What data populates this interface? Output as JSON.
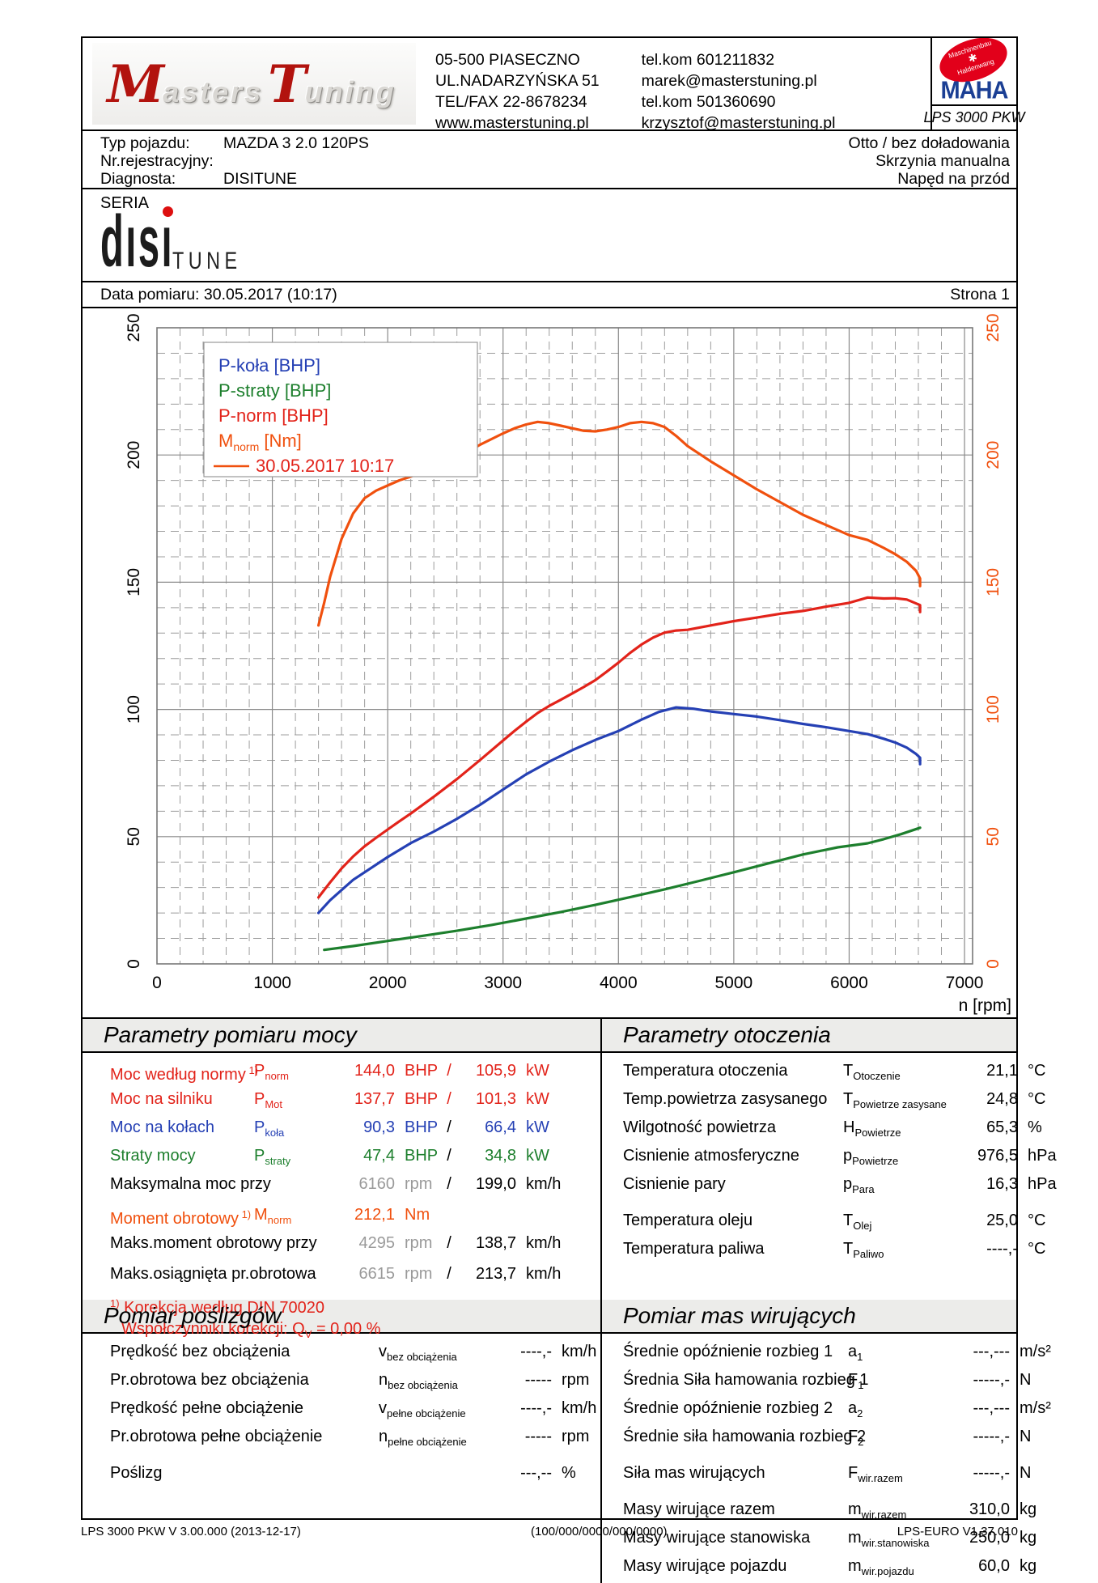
{
  "colors": {
    "accent_red": "#e2231a",
    "accent_orange": "#f0500e",
    "accent_blue": "#2540b4",
    "accent_green": "#1d7f2d",
    "gray_value": "#9a9a9a",
    "maha_red": "#e2001a",
    "maha_blue": "#1b3f94",
    "section_header_bg": "#ececea",
    "logo_red": "#b2130e"
  },
  "header": {
    "logo": {
      "m": "M",
      "asters": "asters",
      "t": "T",
      "uning": "uning"
    },
    "address_lines": [
      "05-500 PIASECZNO",
      "UL.NADARZYŃSKA 51",
      "TEL/FAX 22-8678234",
      "www.masterstuning.pl"
    ],
    "contact_lines": [
      "tel.kom 601211832",
      " marek@masterstuning.pl",
      "tel.kom 501360690",
      "krzysztof@masterstuning.pl"
    ],
    "maha": {
      "badge_top": "Maschinenbau",
      "badge_gear": "✱",
      "badge_bottom": "Haldenwang",
      "brand": "MAHA",
      "device": "LPS 3000 PKW"
    }
  },
  "vehicle": {
    "left": [
      {
        "label": "Typ pojazdu:",
        "value": "MAZDA 3 2.0 120PS"
      },
      {
        "label": "Nr.rejestracyjny:",
        "value": ""
      },
      {
        "label": "Diagnosta:",
        "value": "DISITUNE"
      }
    ],
    "right": [
      "Otto / bez doładowania",
      "Skrzynia manualna",
      "Napęd na przód"
    ]
  },
  "seria_label": "SERIA",
  "disi_logo": {
    "word": "dısı",
    "tune": "TUNE"
  },
  "dateline": {
    "date": "Data pomiaru: 30.05.2017 (10:17)",
    "page": "Strona 1"
  },
  "chart_data": {
    "type": "line",
    "title": "",
    "xlabel": "n [rpm]",
    "x_range": [
      0,
      7070
    ],
    "x_ticks": [
      0,
      1000,
      2000,
      3000,
      4000,
      5000,
      6000,
      7000
    ],
    "x_minor_step": 200,
    "y_left": {
      "label": "",
      "range": [
        0,
        250
      ],
      "ticks": [
        0,
        50,
        100,
        150,
        200,
        250
      ],
      "minor_step": 10,
      "color": "#000000"
    },
    "y_right": {
      "label": "",
      "range": [
        0,
        250
      ],
      "ticks": [
        0,
        50,
        100,
        150,
        200,
        250
      ],
      "minor_step": 10,
      "color": "#f0500e"
    },
    "grid": true,
    "legend": {
      "position": "top-left",
      "entries": [
        {
          "label": "P-koła [BHP]",
          "color": "#2540b4"
        },
        {
          "label": "P-straty [BHP]",
          "color": "#1d7f2d"
        },
        {
          "label": "P-norm [BHP]",
          "color": "#e2231a"
        },
        {
          "label_main": "M",
          "label_sub": "norm",
          "label_rest": " [Nm]",
          "color": "#f0500e"
        },
        {
          "swatch": "line",
          "label": "30.05.2017 10:17",
          "color": "#e2231a",
          "line_color": "#f0500e"
        }
      ]
    },
    "series": [
      {
        "name": "M_norm [Nm]",
        "color": "#f0500e",
        "axis": "right",
        "points": [
          [
            1400,
            133
          ],
          [
            1450,
            142
          ],
          [
            1500,
            152
          ],
          [
            1600,
            167
          ],
          [
            1700,
            177
          ],
          [
            1800,
            183
          ],
          [
            1900,
            186
          ],
          [
            2000,
            188
          ],
          [
            2100,
            190
          ],
          [
            2200,
            191.5
          ],
          [
            2400,
            195
          ],
          [
            2600,
            199
          ],
          [
            2800,
            204
          ],
          [
            3000,
            208.5
          ],
          [
            3100,
            210.5
          ],
          [
            3200,
            212
          ],
          [
            3300,
            213
          ],
          [
            3400,
            212.5
          ],
          [
            3500,
            211.5
          ],
          [
            3600,
            210.5
          ],
          [
            3700,
            209.5
          ],
          [
            3800,
            209.3
          ],
          [
            3900,
            210
          ],
          [
            4000,
            211
          ],
          [
            4100,
            212.5
          ],
          [
            4200,
            213
          ],
          [
            4300,
            212.5
          ],
          [
            4400,
            211
          ],
          [
            4500,
            207.5
          ],
          [
            4600,
            203.5
          ],
          [
            4800,
            197.5
          ],
          [
            5000,
            192
          ],
          [
            5200,
            186.5
          ],
          [
            5400,
            181.5
          ],
          [
            5600,
            176.5
          ],
          [
            5800,
            172.5
          ],
          [
            6000,
            168.5
          ],
          [
            6160,
            166.6
          ],
          [
            6300,
            163.5
          ],
          [
            6400,
            161
          ],
          [
            6500,
            158
          ],
          [
            6580,
            154.5
          ],
          [
            6615,
            151.5
          ],
          [
            6615,
            148.5
          ]
        ]
      },
      {
        "name": "P-norm [BHP]",
        "color": "#e2231a",
        "axis": "left",
        "points": [
          [
            1400,
            26.1
          ],
          [
            1500,
            32
          ],
          [
            1600,
            37.5
          ],
          [
            1700,
            42.2
          ],
          [
            1800,
            46.2
          ],
          [
            1900,
            49.6
          ],
          [
            2000,
            52.8
          ],
          [
            2100,
            56
          ],
          [
            2200,
            59.1
          ],
          [
            2400,
            65.7
          ],
          [
            2600,
            72.6
          ],
          [
            2800,
            80.1
          ],
          [
            3000,
            87.8
          ],
          [
            3100,
            91.6
          ],
          [
            3200,
            95.2
          ],
          [
            3300,
            98.6
          ],
          [
            3400,
            101.4
          ],
          [
            3500,
            103.8
          ],
          [
            3600,
            106.3
          ],
          [
            3700,
            108.8
          ],
          [
            3800,
            111.5
          ],
          [
            3900,
            114.9
          ],
          [
            4000,
            118.4
          ],
          [
            4100,
            122.2
          ],
          [
            4200,
            125.5
          ],
          [
            4300,
            128.2
          ],
          [
            4400,
            130.2
          ],
          [
            4500,
            131
          ],
          [
            4600,
            131.3
          ],
          [
            4800,
            133
          ],
          [
            5000,
            134.7
          ],
          [
            5200,
            136.1
          ],
          [
            5400,
            137.6
          ],
          [
            5600,
            138.7
          ],
          [
            5800,
            140.4
          ],
          [
            6000,
            141.9
          ],
          [
            6160,
            144
          ],
          [
            6300,
            143.6
          ],
          [
            6400,
            143.7
          ],
          [
            6500,
            143.2
          ],
          [
            6615,
            141
          ],
          [
            6615,
            138.3
          ]
        ]
      },
      {
        "name": "P-koła [BHP]",
        "color": "#2540b4",
        "axis": "left",
        "points": [
          [
            1400,
            20
          ],
          [
            1500,
            25
          ],
          [
            1600,
            29
          ],
          [
            1700,
            33
          ],
          [
            1800,
            36
          ],
          [
            2000,
            42
          ],
          [
            2200,
            47.5
          ],
          [
            2400,
            52
          ],
          [
            2600,
            57
          ],
          [
            2800,
            62.5
          ],
          [
            3000,
            68.5
          ],
          [
            3200,
            74.5
          ],
          [
            3400,
            79.5
          ],
          [
            3600,
            84
          ],
          [
            3800,
            88
          ],
          [
            4000,
            91.5
          ],
          [
            4200,
            96
          ],
          [
            4350,
            99
          ],
          [
            4500,
            100.8
          ],
          [
            4650,
            100.3
          ],
          [
            4800,
            99.2
          ],
          [
            5000,
            98.2
          ],
          [
            5200,
            97.2
          ],
          [
            5400,
            95.8
          ],
          [
            5600,
            94.3
          ],
          [
            5800,
            93
          ],
          [
            6000,
            91.5
          ],
          [
            6160,
            90.3
          ],
          [
            6300,
            88.5
          ],
          [
            6400,
            87
          ],
          [
            6500,
            85
          ],
          [
            6580,
            82.5
          ],
          [
            6615,
            81
          ],
          [
            6615,
            78.5
          ]
        ]
      },
      {
        "name": "P-straty [BHP]",
        "color": "#1d7f2d",
        "axis": "left",
        "points": [
          [
            1450,
            5.5
          ],
          [
            1700,
            7
          ],
          [
            2000,
            9
          ],
          [
            2300,
            11
          ],
          [
            2600,
            13
          ],
          [
            2900,
            15.3
          ],
          [
            3200,
            17.8
          ],
          [
            3500,
            20.4
          ],
          [
            3800,
            23.2
          ],
          [
            4100,
            26.2
          ],
          [
            4400,
            29.3
          ],
          [
            4700,
            32.6
          ],
          [
            5000,
            36
          ],
          [
            5300,
            39.5
          ],
          [
            5600,
            43
          ],
          [
            5900,
            45.8
          ],
          [
            6160,
            47.4
          ],
          [
            6300,
            49
          ],
          [
            6450,
            51
          ],
          [
            6615,
            53.5
          ]
        ]
      }
    ]
  },
  "sections": {
    "power": {
      "title": "Parametry pomiaru mocy",
      "rows": [
        {
          "label": "Moc według normy",
          "sup": "1)",
          "sym": "P",
          "sub": "norm",
          "v1": "144,0",
          "u1": "BHP",
          "slash": "/",
          "v2": "105,9",
          "u2": "kW",
          "color": "red"
        },
        {
          "label": "Moc na silniku",
          "sup": "",
          "sym": "P",
          "sub": "Mot",
          "v1": "137,7",
          "u1": "BHP",
          "slash": "/",
          "v2": "101,3",
          "u2": "kW",
          "color": "red"
        },
        {
          "label": "Moc na kołach",
          "sup": "",
          "sym": "P",
          "sub": "koła",
          "v1": "90,3",
          "u1": "BHP",
          "slash": "/",
          "v2": "66,4",
          "u2": "kW",
          "color": "blue"
        },
        {
          "label": "Straty mocy",
          "sup": "",
          "sym": "P",
          "sub": "straty",
          "v1": "47,4",
          "u1": "BHP",
          "slash": "/",
          "v2": "34,8",
          "u2": "kW",
          "color": "green"
        },
        {
          "label": "Maksymalna moc przy",
          "sup": "",
          "sym": "",
          "sub": "",
          "v1": "6160",
          "u1": "rpm",
          "gray1": true,
          "slash": "/",
          "v2": "199,0",
          "u2": "km/h",
          "color": "black"
        },
        {
          "label": "Moment obrotowy",
          "sup": "1)",
          "sym": "M",
          "sub": "norm",
          "v1": "212,1",
          "u1": "Nm",
          "slash": "",
          "v2": "",
          "u2": "",
          "color": "orange",
          "gap": true
        },
        {
          "label": "Maks.moment obrotowy przy",
          "sup": "",
          "sym": "",
          "sub": "",
          "v1": "4295",
          "u1": "rpm",
          "gray1": true,
          "slash": "/",
          "v2": "138,7",
          "u2": "km/h",
          "color": "black"
        },
        {
          "label": "Maks.osiągnięta pr.obrotowa",
          "sup": "",
          "sym": "",
          "sub": "",
          "v1": "6615",
          "u1": "rpm",
          "gray1": true,
          "slash": "/",
          "v2": "213,7",
          "u2": "km/h",
          "color": "black",
          "gap": true
        }
      ],
      "footnote1": {
        "sup": "1)",
        "text": " Korekcja według DIN 70020"
      },
      "footnote2": {
        "pre": "Współczynniki korekcji: Q",
        "sub": "V",
        "post": " =",
        "val": "  0,00 %"
      }
    },
    "ambient": {
      "title": "Parametry otoczenia",
      "rows": [
        {
          "label": "Temperatura otoczenia",
          "sym": "T",
          "sub": "Otoczenie",
          "v1": "21,1",
          "u1": "°C",
          "color": "black"
        },
        {
          "label": "Temp.powietrza zasysanego",
          "sym": "T",
          "sub": "Powietrze zasysane",
          "v1": "24,8",
          "u1": "°C",
          "color": "black"
        },
        {
          "label": "Wilgotność powietrza",
          "sym": "H",
          "sub": "Powietrze",
          "v1": "65,3",
          "u1": "%",
          "color": "black"
        },
        {
          "label": "Cisnienie atmosferyczne",
          "sym": "p",
          "sub": "Powietrze",
          "v1": "976,5",
          "u1": "hPa",
          "color": "black"
        },
        {
          "label": "Cisnienie pary",
          "sym": "p",
          "sub": "Para",
          "v1": "16,3",
          "u1": "hPa",
          "color": "black"
        },
        {
          "label": "Temperatura oleju",
          "sym": "T",
          "sub": "Olej",
          "v1": "25,0",
          "u1": "°C",
          "color": "black",
          "gap": true
        },
        {
          "label": "Temperatura paliwa",
          "sym": "T",
          "sub": "Paliwo",
          "v1": "----,-",
          "u1": "°C",
          "color": "black"
        }
      ]
    },
    "slip": {
      "title": "Pomiar poślizgów",
      "rows": [
        {
          "label": "Prędkość bez obciążenia",
          "sym": "v",
          "sub": "bez obciążenia",
          "v1": "----,-",
          "u1": "km/h",
          "color": "black"
        },
        {
          "label": "Pr.obrotowa bez obciążenia",
          "sym": "n",
          "sub": "bez obciążenia",
          "v1": "-----",
          "u1": "rpm",
          "color": "black"
        },
        {
          "label": "Prędkość pełne obciążenie",
          "sym": "v",
          "sub": "pełne obciążenie",
          "v1": "----,-",
          "u1": "km/h",
          "color": "black"
        },
        {
          "label": "Pr.obrotowa pełne obciążenie",
          "sym": "n",
          "sub": "pełne obciążenie",
          "v1": "-----",
          "u1": "rpm",
          "color": "black"
        },
        {
          "label": "Poślizg",
          "sym": "",
          "sub": "",
          "v1": "---,--",
          "u1": "%",
          "color": "black",
          "gap": true
        }
      ]
    },
    "mass": {
      "title": "Pomiar mas wirujących",
      "rows": [
        {
          "label": "Średnie opóźnienie rozbieg 1",
          "sym": "a",
          "sub": "1",
          "v1": "---,---",
          "u1": "m/s²",
          "color": "black"
        },
        {
          "label": "Średnia Siła hamowania rozbieg 1",
          "sym": "F",
          "sub": "1",
          "v1": "-----,-",
          "u1": "N",
          "color": "black"
        },
        {
          "label": "Średnie opóźnienie rozbieg 2",
          "sym": "a",
          "sub": "2",
          "v1": "---,---",
          "u1": "m/s²",
          "color": "black"
        },
        {
          "label": "Średnie siła hamowania rozbieg 2",
          "sym": "F",
          "sub": "2",
          "v1": "-----,-",
          "u1": "N",
          "color": "black"
        },
        {
          "label": "Siła mas wirujących",
          "sym": "F",
          "sub": "wir.razem",
          "v1": "-----,-",
          "u1": "N",
          "color": "black",
          "gap": true
        },
        {
          "label": "Masy wirujące razem",
          "sym": "m",
          "sub": "wir.razem",
          "v1": "310,0",
          "u1": "kg",
          "color": "black",
          "gap": true
        },
        {
          "label": "Masy wirujące stanowiska",
          "sym": "m",
          "sub": "wir.stanowiska",
          "v1": "250,0",
          "u1": "kg",
          "color": "black"
        },
        {
          "label": "Masy wirujące pojazdu",
          "sym": "m",
          "sub": "wir.pojazdu",
          "v1": "60,0",
          "u1": "kg",
          "color": "black"
        }
      ]
    }
  },
  "footer": {
    "left": "LPS 3000 PKW V 3.00.000 (2013-12-17)",
    "center": "(100/000/0000/000/0000)",
    "right": "LPS-EURO V1.37.010"
  }
}
